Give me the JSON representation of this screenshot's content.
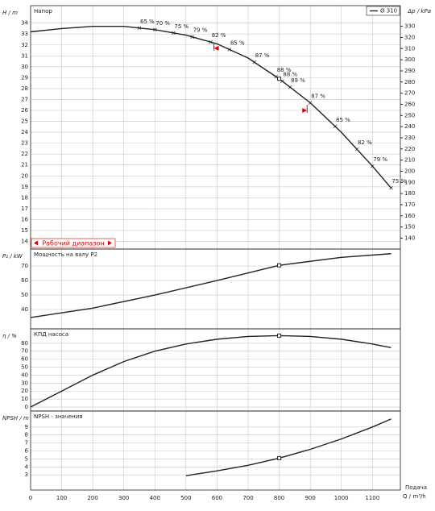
{
  "chart_data": [
    {
      "type": "line",
      "title": "Напор",
      "ylabel": "H / m",
      "y2label": "Δp / kPa",
      "series": [
        {
          "name": "Ø 310",
          "color": "#222222",
          "x": [
            0,
            100,
            200,
            300,
            400,
            500,
            600,
            700,
            800,
            900,
            1000,
            1100,
            1160
          ],
          "values": [
            33.2,
            33.5,
            33.7,
            33.7,
            33.4,
            32.9,
            32.1,
            30.8,
            28.9,
            26.7,
            24.0,
            20.9,
            18.9
          ]
        }
      ],
      "ylim": [
        13.3,
        35.6
      ],
      "yticks": [
        14,
        15,
        16,
        17,
        18,
        19,
        20,
        21,
        22,
        23,
        24,
        25,
        26,
        27,
        28,
        29,
        30,
        31,
        32,
        33,
        34
      ],
      "y2lim": [
        130.2,
        348.5
      ],
      "y2ticks": [
        140,
        150,
        160,
        170,
        180,
        190,
        200,
        210,
        220,
        230,
        240,
        250,
        260,
        270,
        280,
        290,
        300,
        310,
        320,
        330
      ],
      "duty_point": {
        "x": 800,
        "y": 28.9
      },
      "range_markers": [
        {
          "x": 590,
          "y": 31.7
        },
        {
          "x": 890,
          "y": 26.0
        }
      ],
      "range_label": "Рабочий диапазон",
      "annotations": [
        {
          "q": 350,
          "label": "65 %"
        },
        {
          "q": 400,
          "label": "70 %"
        },
        {
          "q": 460,
          "label": "75 %"
        },
        {
          "q": 520,
          "label": "79 %"
        },
        {
          "q": 580,
          "label": "82 %"
        },
        {
          "q": 640,
          "label": "85 %"
        },
        {
          "q": 720,
          "label": "87 %"
        },
        {
          "q": 790,
          "label": "88 %"
        },
        {
          "q": 810,
          "label": "88.%"
        },
        {
          "q": 835,
          "label": "89 %"
        },
        {
          "q": 900,
          "label": "87 %"
        },
        {
          "q": 980,
          "label": "85 %"
        },
        {
          "q": 1050,
          "label": "82 %"
        },
        {
          "q": 1100,
          "label": "79 %"
        },
        {
          "q": 1160,
          "label": "75 %"
        }
      ]
    },
    {
      "type": "line",
      "title": "Мощность на валу P2",
      "ylabel": "P₂ / kW",
      "series": [
        {
          "name": "P2",
          "color": "#222222",
          "x": [
            0,
            200,
            400,
            600,
            800,
            1000,
            1160
          ],
          "values": [
            34.5,
            41,
            50,
            60,
            70.5,
            76,
            78.5
          ]
        }
      ],
      "ylim": [
        26.7,
        81.7
      ],
      "yticks": [
        40,
        50,
        60,
        70
      ],
      "duty_point": {
        "x": 800,
        "y": 70.5
      }
    },
    {
      "type": "line",
      "title": "КПД насоса",
      "ylabel": "η / %",
      "series": [
        {
          "name": "η",
          "color": "#222222",
          "x": [
            0,
            100,
            200,
            300,
            400,
            500,
            600,
            700,
            800,
            900,
            1000,
            1100,
            1160
          ],
          "values": [
            0,
            20,
            40,
            57,
            70,
            79,
            85,
            88.5,
            89.5,
            88.5,
            85,
            79,
            74.5
          ]
        }
      ],
      "ylim": [
        -5,
        98
      ],
      "yticks": [
        0,
        10,
        20,
        30,
        40,
        50,
        60,
        70,
        80
      ],
      "duty_point": {
        "x": 800,
        "y": 89.5
      }
    },
    {
      "type": "line",
      "title": "NPSH - значения",
      "ylabel": "NPSH / m",
      "xlabel": "Q / m³/h",
      "xlabel2": "Подача",
      "series": [
        {
          "name": "NPSH",
          "color": "#222222",
          "x": [
            500,
            600,
            700,
            800,
            900,
            1000,
            1100,
            1160
          ],
          "values": [
            2.9,
            3.5,
            4.2,
            5.1,
            6.2,
            7.5,
            9.0,
            10.0
          ]
        }
      ],
      "ylim": [
        1.1,
        11
      ],
      "yticks": [
        3,
        4,
        5,
        6,
        7,
        8,
        9
      ],
      "duty_point": {
        "x": 800,
        "y": 5.1
      },
      "xlim": [
        0,
        1190
      ],
      "xticks": [
        0,
        100,
        200,
        300,
        400,
        500,
        600,
        700,
        800,
        900,
        1000,
        1100
      ]
    }
  ]
}
